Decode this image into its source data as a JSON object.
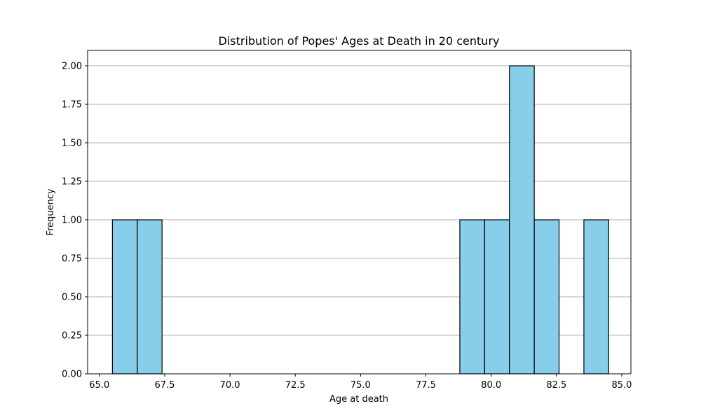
{
  "chart_data": {
    "type": "bar",
    "title": "Distribution of Popes' Ages at Death in 20 century",
    "xlabel": "Age at death",
    "ylabel": "Frequency",
    "xlim": [
      64.55,
      85.35
    ],
    "ylim": [
      0,
      2.1
    ],
    "bins": [
      {
        "start": 65.5,
        "end": 66.45,
        "count": 1
      },
      {
        "start": 66.45,
        "end": 67.4,
        "count": 1
      },
      {
        "start": 67.4,
        "end": 68.35,
        "count": 0
      },
      {
        "start": 68.35,
        "end": 69.3,
        "count": 0
      },
      {
        "start": 69.3,
        "end": 70.25,
        "count": 0
      },
      {
        "start": 70.25,
        "end": 71.2,
        "count": 0
      },
      {
        "start": 71.2,
        "end": 72.15,
        "count": 0
      },
      {
        "start": 72.15,
        "end": 73.1,
        "count": 0
      },
      {
        "start": 73.1,
        "end": 74.05,
        "count": 0
      },
      {
        "start": 74.05,
        "end": 75.0,
        "count": 0
      },
      {
        "start": 75.0,
        "end": 75.95,
        "count": 0
      },
      {
        "start": 75.95,
        "end": 76.9,
        "count": 0
      },
      {
        "start": 76.9,
        "end": 77.85,
        "count": 0
      },
      {
        "start": 77.85,
        "end": 78.8,
        "count": 0
      },
      {
        "start": 78.8,
        "end": 79.75,
        "count": 1
      },
      {
        "start": 79.75,
        "end": 80.7,
        "count": 1
      },
      {
        "start": 80.7,
        "end": 81.65,
        "count": 2
      },
      {
        "start": 81.65,
        "end": 82.6,
        "count": 1
      },
      {
        "start": 82.6,
        "end": 83.55,
        "count": 0
      },
      {
        "start": 83.55,
        "end": 84.5,
        "count": 1
      }
    ],
    "x_ticks": [
      "65.0",
      "67.5",
      "70.0",
      "72.5",
      "75.0",
      "77.5",
      "80.0",
      "82.5",
      "85.0"
    ],
    "y_ticks": [
      "0.00",
      "0.25",
      "0.50",
      "0.75",
      "1.00",
      "1.25",
      "1.50",
      "1.75",
      "2.00"
    ],
    "grid": "y-axis only",
    "bar_color": "#87ceeb",
    "edge_color": "#000000",
    "grid_color": "#b0b0b0"
  }
}
